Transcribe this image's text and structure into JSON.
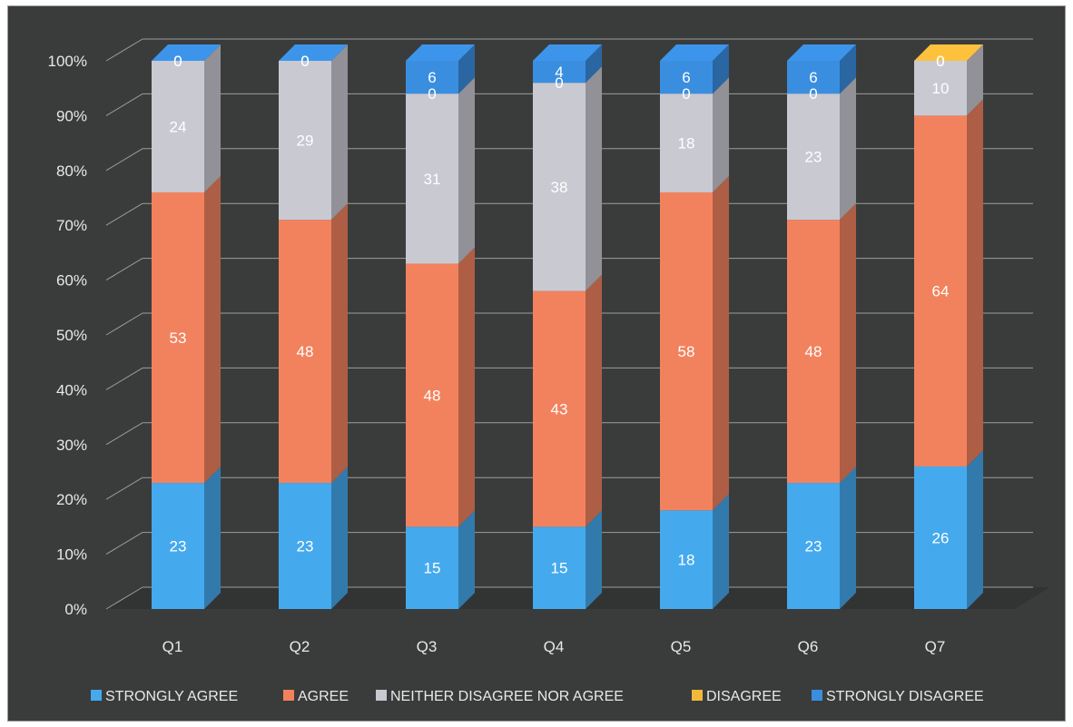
{
  "chart_data": {
    "type": "bar",
    "stacked": true,
    "stack_percent": true,
    "three_d": true,
    "title": "",
    "xlabel": "",
    "ylabel": "",
    "categories": [
      "Q1",
      "Q2",
      "Q3",
      "Q4",
      "Q5",
      "Q6",
      "Q7"
    ],
    "ylim": [
      0,
      100
    ],
    "yticks": [
      "0%",
      "10%",
      "20%",
      "30%",
      "40%",
      "50%",
      "60%",
      "70%",
      "80%",
      "90%",
      "100%"
    ],
    "grid": true,
    "legend_position": "bottom",
    "series": [
      {
        "name": "STRONGLY AGREE",
        "color": "#45a9ee",
        "values": [
          23,
          23,
          15,
          15,
          18,
          23,
          26
        ]
      },
      {
        "name": "AGREE",
        "color": "#f2825e",
        "values": [
          53,
          48,
          48,
          43,
          58,
          48,
          64
        ]
      },
      {
        "name": "NEITHER DISAGREE NOR AGREE",
        "color": "#c9c9d2",
        "values": [
          24,
          29,
          31,
          38,
          18,
          23,
          10
        ]
      },
      {
        "name": "DISAGREE",
        "color": "#f2b83a",
        "values": [
          0,
          0,
          0,
          0,
          0,
          0,
          0
        ]
      },
      {
        "name": "STRONGLY DISAGREE",
        "color": "#3a8ee0",
        "values": [
          0,
          0,
          6,
          4,
          6,
          6,
          0
        ]
      }
    ]
  }
}
